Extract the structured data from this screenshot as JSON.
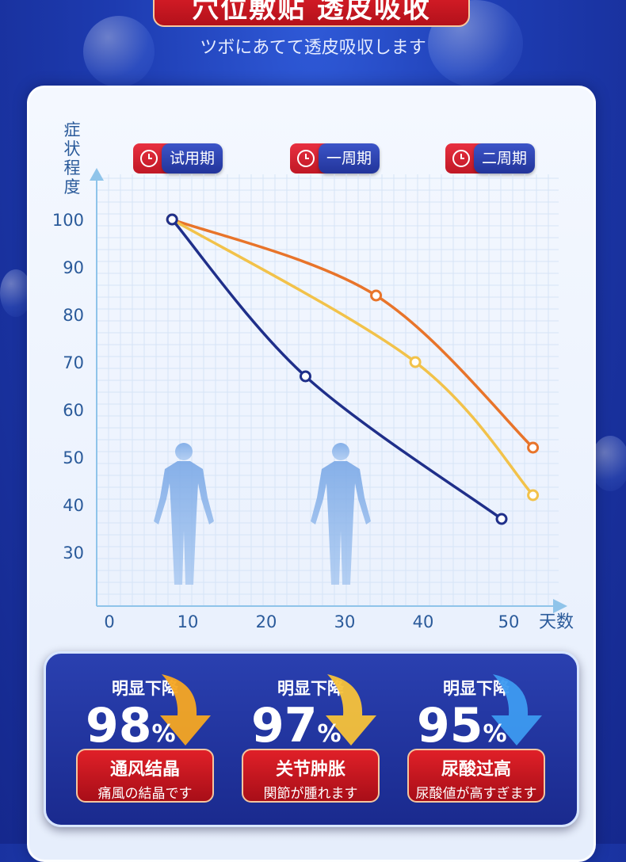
{
  "header": {
    "title": "穴位敷贴  透皮吸收",
    "subtitle": "ツボにあてて透皮吸収します"
  },
  "chart_labels": {
    "y_title": "症状程度",
    "x_unit": "天数"
  },
  "phase_tags": [
    {
      "label": "试用期"
    },
    {
      "label": "一周期"
    },
    {
      "label": "二周期"
    }
  ],
  "chart_data": {
    "type": "line",
    "xlabel": "天数",
    "ylabel": "症状程度",
    "x_ticks": [
      0,
      10,
      20,
      30,
      40,
      50
    ],
    "y_ticks": [
      30,
      40,
      50,
      60,
      70,
      80,
      90,
      100
    ],
    "xlim": [
      0,
      55
    ],
    "ylim": [
      25,
      105
    ],
    "grid": true,
    "series": [
      {
        "color": "#e8742a",
        "points": [
          [
            8,
            100
          ],
          [
            34,
            84
          ],
          [
            54,
            52
          ]
        ]
      },
      {
        "color": "#f2c24a",
        "points": [
          [
            8,
            100
          ],
          [
            39,
            70
          ],
          [
            54,
            42
          ]
        ]
      },
      {
        "color": "#1f2f8a",
        "points": [
          [
            8,
            100
          ],
          [
            25,
            67
          ],
          [
            50,
            37
          ]
        ]
      }
    ]
  },
  "stats": [
    {
      "head": "明显下降",
      "value": "98",
      "unit": "%",
      "title": "通风结晶",
      "sub": "痛風の結晶です",
      "arrow_color": "#f5a623"
    },
    {
      "head": "明显下降",
      "value": "97",
      "unit": "%",
      "title": "关节肿胀",
      "sub": "関節が腫れます",
      "arrow_color": "#f7c23a"
    },
    {
      "head": "明显下降",
      "value": "95",
      "unit": "%",
      "title": "尿酸过高",
      "sub": "尿酸値が高すぎます",
      "arrow_color": "#3d9af0"
    }
  ]
}
